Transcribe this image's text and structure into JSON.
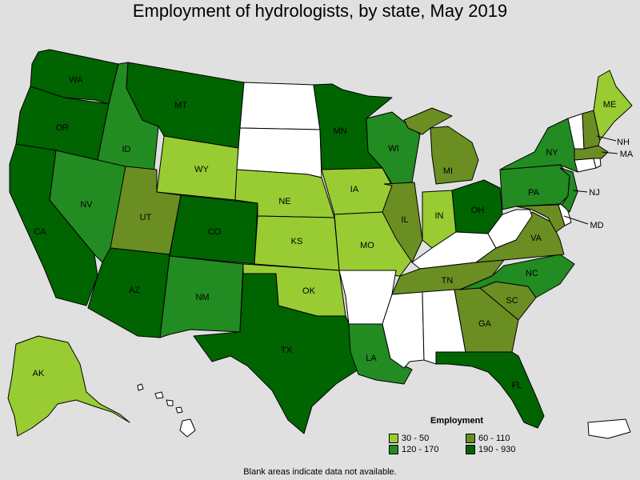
{
  "title": "Employment of hydrologists, by state, May 2019",
  "footnote": "Blank areas indicate data not available.",
  "legend": {
    "title": "Employment",
    "items": [
      {
        "label": "30 - 50",
        "color": "#99cc33",
        "category": "low"
      },
      {
        "label": "60 - 110",
        "color": "#6b8e23",
        "category": "midlow"
      },
      {
        "label": "120 - 170",
        "color": "#228b22",
        "category": "mid"
      },
      {
        "label": "190 - 930",
        "color": "#006400",
        "category": "high"
      }
    ]
  },
  "blank_color": "#ffffff",
  "states": [
    {
      "abbr": "WA",
      "category": "high"
    },
    {
      "abbr": "OR",
      "category": "high"
    },
    {
      "abbr": "CA",
      "category": "high"
    },
    {
      "abbr": "ID",
      "category": "mid"
    },
    {
      "abbr": "NV",
      "category": "mid"
    },
    {
      "abbr": "MT",
      "category": "high"
    },
    {
      "abbr": "WY",
      "category": "low"
    },
    {
      "abbr": "UT",
      "category": "midlow"
    },
    {
      "abbr": "AZ",
      "category": "high"
    },
    {
      "abbr": "CO",
      "category": "high"
    },
    {
      "abbr": "NM",
      "category": "mid"
    },
    {
      "abbr": "ND",
      "category": "blank"
    },
    {
      "abbr": "SD",
      "category": "blank"
    },
    {
      "abbr": "NE",
      "category": "low"
    },
    {
      "abbr": "KS",
      "category": "low"
    },
    {
      "abbr": "OK",
      "category": "low"
    },
    {
      "abbr": "TX",
      "category": "high"
    },
    {
      "abbr": "MN",
      "category": "high"
    },
    {
      "abbr": "IA",
      "category": "low"
    },
    {
      "abbr": "MO",
      "category": "low"
    },
    {
      "abbr": "AR",
      "category": "blank"
    },
    {
      "abbr": "LA",
      "category": "mid"
    },
    {
      "abbr": "WI",
      "category": "mid"
    },
    {
      "abbr": "IL",
      "category": "midlow"
    },
    {
      "abbr": "MI",
      "category": "midlow"
    },
    {
      "abbr": "IN",
      "category": "low"
    },
    {
      "abbr": "OH",
      "category": "high"
    },
    {
      "abbr": "KY",
      "category": "blank"
    },
    {
      "abbr": "TN",
      "category": "midlow"
    },
    {
      "abbr": "MS",
      "category": "blank"
    },
    {
      "abbr": "AL",
      "category": "blank"
    },
    {
      "abbr": "GA",
      "category": "midlow"
    },
    {
      "abbr": "FL",
      "category": "high"
    },
    {
      "abbr": "SC",
      "category": "midlow"
    },
    {
      "abbr": "NC",
      "category": "mid"
    },
    {
      "abbr": "VA",
      "category": "midlow"
    },
    {
      "abbr": "WV",
      "category": "blank"
    },
    {
      "abbr": "MD",
      "category": "midlow"
    },
    {
      "abbr": "DE",
      "category": "blank"
    },
    {
      "abbr": "PA",
      "category": "mid"
    },
    {
      "abbr": "NJ",
      "category": "mid"
    },
    {
      "abbr": "NY",
      "category": "mid"
    },
    {
      "abbr": "CT",
      "category": "blank"
    },
    {
      "abbr": "RI",
      "category": "blank"
    },
    {
      "abbr": "MA",
      "category": "midlow"
    },
    {
      "abbr": "VT",
      "category": "blank"
    },
    {
      "abbr": "NH",
      "category": "midlow"
    },
    {
      "abbr": "ME",
      "category": "low"
    },
    {
      "abbr": "AK",
      "category": "low"
    },
    {
      "abbr": "HI",
      "category": "blank"
    },
    {
      "abbr": "PR",
      "category": "blank"
    }
  ]
}
